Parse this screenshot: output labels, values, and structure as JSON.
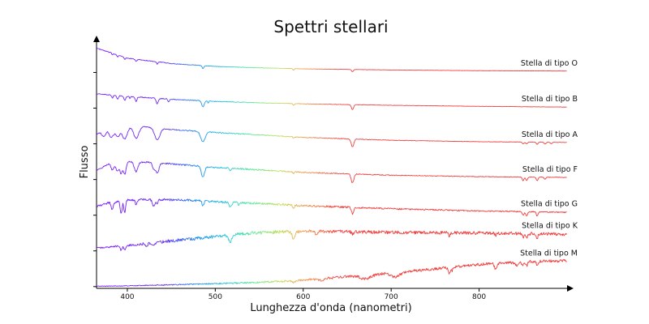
{
  "chart_data": {
    "type": "line",
    "title": "Spettri stellari",
    "xlabel": "Lunghezza d'onda (nanometri)",
    "ylabel": "Flusso",
    "xlim": [
      365,
      900
    ],
    "xticks": [
      400,
      500,
      600,
      700,
      800
    ],
    "yticks_labeled": false,
    "grid": false,
    "color_scale": {
      "by": "wavelength",
      "stops": [
        {
          "wavelength": 380,
          "color": "#7a1fff"
        },
        {
          "wavelength": 440,
          "color": "#6a2cf0"
        },
        {
          "wavelength": 480,
          "color": "#1f8ff0"
        },
        {
          "wavelength": 510,
          "color": "#25c4e0"
        },
        {
          "wavelength": 540,
          "color": "#5ee8a0"
        },
        {
          "wavelength": 575,
          "color": "#c8e060"
        },
        {
          "wavelength": 600,
          "color": "#f2a050"
        },
        {
          "wavelength": 640,
          "color": "#f04545"
        },
        {
          "wavelength": 900,
          "color": "#f03a3a"
        }
      ]
    },
    "series": [
      {
        "name": "Stella di tipo O",
        "offset": 6.0,
        "continuum": [
          [
            365,
            0.68
          ],
          [
            400,
            0.4
          ],
          [
            450,
            0.25
          ],
          [
            500,
            0.17
          ],
          [
            550,
            0.13
          ],
          [
            600,
            0.1
          ],
          [
            700,
            0.07
          ],
          [
            800,
            0.05
          ],
          [
            900,
            0.04
          ]
        ],
        "lines": [
          [
            383,
            0.04,
            0.6
          ],
          [
            389,
            0.05,
            0.7
          ],
          [
            397,
            0.06,
            0.8
          ],
          [
            410,
            0.06,
            0.9
          ],
          [
            434,
            0.06,
            0.9
          ],
          [
            486,
            0.08,
            1.0
          ],
          [
            589,
            0.04,
            0.8
          ],
          [
            656,
            0.06,
            1.0
          ]
        ],
        "noise": 0.01
      },
      {
        "name": "Stella di tipo B",
        "offset": 5.0,
        "continuum": [
          [
            365,
            0.4
          ],
          [
            400,
            0.33
          ],
          [
            450,
            0.25
          ],
          [
            500,
            0.19
          ],
          [
            550,
            0.15
          ],
          [
            600,
            0.12
          ],
          [
            700,
            0.08
          ],
          [
            800,
            0.05
          ],
          [
            900,
            0.03
          ]
        ],
        "lines": [
          [
            383,
            0.08,
            0.8
          ],
          [
            389,
            0.1,
            0.9
          ],
          [
            397,
            0.12,
            1.0
          ],
          [
            403,
            0.06,
            0.6
          ],
          [
            410,
            0.13,
            1.0
          ],
          [
            434,
            0.15,
            1.2
          ],
          [
            447,
            0.08,
            0.8
          ],
          [
            486,
            0.17,
            1.4
          ],
          [
            492,
            0.06,
            0.6
          ],
          [
            589,
            0.05,
            0.8
          ],
          [
            656,
            0.14,
            1.2
          ]
        ],
        "noise": 0.012
      },
      {
        "name": "Stella di tipo A",
        "offset": 4.0,
        "continuum": [
          [
            365,
            0.25
          ],
          [
            380,
            0.52
          ],
          [
            395,
            0.52
          ],
          [
            420,
            0.48
          ],
          [
            450,
            0.4
          ],
          [
            500,
            0.32
          ],
          [
            550,
            0.25
          ],
          [
            600,
            0.18
          ],
          [
            700,
            0.1
          ],
          [
            800,
            0.06
          ],
          [
            900,
            0.04
          ]
        ],
        "lines": [
          [
            372,
            0.14,
            1.5
          ],
          [
            375,
            0.16,
            1.5
          ],
          [
            380,
            0.2,
            2.0
          ],
          [
            383,
            0.24,
            2.2
          ],
          [
            389,
            0.3,
            2.5
          ],
          [
            397,
            0.38,
            3.0
          ],
          [
            410,
            0.34,
            3.0
          ],
          [
            434,
            0.32,
            3.0
          ],
          [
            486,
            0.28,
            2.5
          ],
          [
            589,
            0.04,
            0.8
          ],
          [
            656,
            0.22,
            1.5
          ],
          [
            850,
            0.05,
            1.0
          ],
          [
            854,
            0.05,
            1.0
          ],
          [
            866,
            0.06,
            1.0
          ],
          [
            875,
            0.05,
            1.0
          ],
          [
            882,
            0.04,
            1.0
          ]
        ],
        "noise": 0.015
      },
      {
        "name": "Stella di tipo F",
        "offset": 3.0,
        "continuum": [
          [
            365,
            0.25
          ],
          [
            380,
            0.45
          ],
          [
            400,
            0.5
          ],
          [
            430,
            0.48
          ],
          [
            470,
            0.4
          ],
          [
            500,
            0.34
          ],
          [
            550,
            0.27
          ],
          [
            600,
            0.2
          ],
          [
            700,
            0.12
          ],
          [
            800,
            0.08
          ],
          [
            900,
            0.06
          ]
        ],
        "lines": [
          [
            383,
            0.2,
            1.5
          ],
          [
            389,
            0.25,
            1.8
          ],
          [
            393,
            0.3,
            1.2
          ],
          [
            397,
            0.35,
            1.5
          ],
          [
            410,
            0.28,
            2.0
          ],
          [
            430,
            0.16,
            1.5
          ],
          [
            434,
            0.28,
            2.0
          ],
          [
            486,
            0.3,
            1.8
          ],
          [
            517,
            0.08,
            1.0
          ],
          [
            589,
            0.06,
            0.8
          ],
          [
            656,
            0.25,
            1.5
          ],
          [
            850,
            0.1,
            1.0
          ],
          [
            854,
            0.1,
            1.0
          ],
          [
            866,
            0.1,
            1.0
          ],
          [
            875,
            0.06,
            1.0
          ]
        ],
        "noise": 0.02
      },
      {
        "name": "Stella di tipo G",
        "offset": 2.0,
        "continuum": [
          [
            365,
            0.25
          ],
          [
            380,
            0.35
          ],
          [
            400,
            0.42
          ],
          [
            430,
            0.44
          ],
          [
            470,
            0.42
          ],
          [
            500,
            0.38
          ],
          [
            550,
            0.33
          ],
          [
            600,
            0.27
          ],
          [
            700,
            0.18
          ],
          [
            800,
            0.12
          ],
          [
            900,
            0.08
          ]
        ],
        "lines": [
          [
            383,
            0.2,
            1.2
          ],
          [
            393,
            0.35,
            1.0
          ],
          [
            397,
            0.35,
            1.0
          ],
          [
            410,
            0.12,
            1.0
          ],
          [
            430,
            0.18,
            1.5
          ],
          [
            434,
            0.12,
            1.0
          ],
          [
            486,
            0.14,
            1.0
          ],
          [
            517,
            0.12,
            1.5
          ],
          [
            527,
            0.08,
            1.0
          ],
          [
            589,
            0.1,
            1.0
          ],
          [
            656,
            0.18,
            1.2
          ],
          [
            850,
            0.1,
            1.0
          ],
          [
            854,
            0.12,
            1.0
          ],
          [
            866,
            0.12,
            1.0
          ]
        ],
        "noise": 0.03
      },
      {
        "name": "Stella di tipo K",
        "offset": 1.0,
        "continuum": [
          [
            365,
            0.08
          ],
          [
            400,
            0.15
          ],
          [
            450,
            0.28
          ],
          [
            500,
            0.4
          ],
          [
            530,
            0.48
          ],
          [
            560,
            0.52
          ],
          [
            590,
            0.55
          ],
          [
            620,
            0.55
          ],
          [
            700,
            0.52
          ],
          [
            800,
            0.5
          ],
          [
            900,
            0.47
          ]
        ],
        "lines": [
          [
            393,
            0.12,
            1.0
          ],
          [
            397,
            0.12,
            1.0
          ],
          [
            422,
            0.08,
            1.2
          ],
          [
            430,
            0.1,
            1.5
          ],
          [
            517,
            0.18,
            2.0
          ],
          [
            589,
            0.22,
            1.5
          ],
          [
            615,
            0.08,
            1.5
          ],
          [
            656,
            0.08,
            1.0
          ],
          [
            766,
            0.08,
            1.0
          ],
          [
            819,
            0.06,
            1.0
          ],
          [
            850,
            0.1,
            1.0
          ],
          [
            854,
            0.12,
            1.0
          ],
          [
            866,
            0.12,
            1.0
          ]
        ],
        "noise": 0.045
      },
      {
        "name": "Stella di tipo M",
        "offset": 0.0,
        "continuum": [
          [
            365,
            0.01
          ],
          [
            400,
            0.02
          ],
          [
            450,
            0.05
          ],
          [
            500,
            0.08
          ],
          [
            550,
            0.12
          ],
          [
            600,
            0.18
          ],
          [
            650,
            0.28
          ],
          [
            700,
            0.38
          ],
          [
            750,
            0.5
          ],
          [
            800,
            0.62
          ],
          [
            850,
            0.7
          ],
          [
            900,
            0.72
          ]
        ],
        "lines": [
          [
            589,
            0.06,
            1.5
          ],
          [
            620,
            0.05,
            3.0
          ],
          [
            671,
            0.1,
            6.0
          ],
          [
            705,
            0.12,
            5.0
          ],
          [
            766,
            0.15,
            1.2
          ],
          [
            769,
            0.1,
            1.0
          ],
          [
            819,
            0.18,
            1.5
          ],
          [
            843,
            0.08,
            3.0
          ],
          [
            850,
            0.1,
            1.0
          ],
          [
            854,
            0.12,
            1.0
          ],
          [
            866,
            0.12,
            1.0
          ]
        ],
        "noise": 0.04
      }
    ]
  }
}
